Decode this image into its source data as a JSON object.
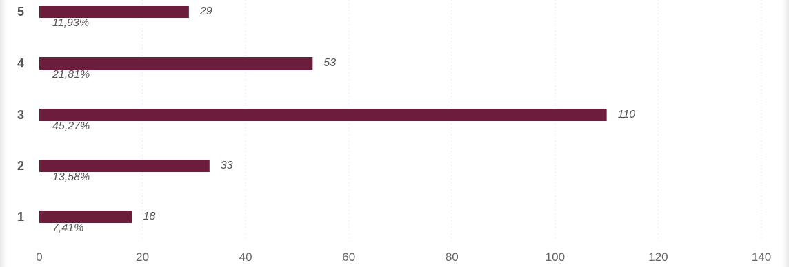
{
  "chart_data": {
    "type": "bar",
    "orientation": "horizontal",
    "categories": [
      "5",
      "4",
      "3",
      "2",
      "1"
    ],
    "values": [
      29,
      53,
      110,
      33,
      18
    ],
    "percent_labels": [
      "11,93%",
      "21,81%",
      "45,27%",
      "13,58%",
      "7,41%"
    ],
    "xlim": [
      0,
      140
    ],
    "x_ticks": [
      0,
      20,
      40,
      60,
      80,
      100,
      120,
      140
    ],
    "grid": true,
    "bar_color": "#6b1d3b"
  }
}
